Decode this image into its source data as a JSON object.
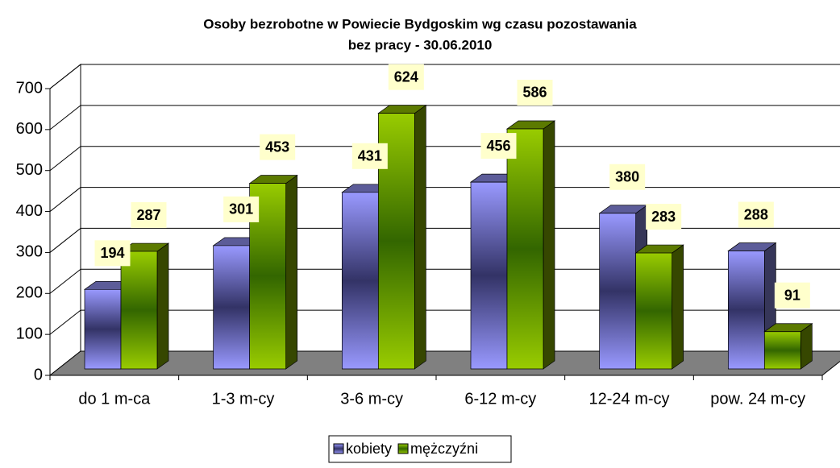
{
  "chart_data": {
    "type": "bar3d",
    "title": "Osoby bezrobotne w Powiecie Bydgoskim wg czasu pozostawania",
    "subtitle": "bez pracy - 30.06.2010",
    "categories": [
      "do 1 m-ca",
      "1-3 m-cy",
      "3-6 m-cy",
      "6-12 m-cy",
      "12-24 m-cy",
      "pow. 24 m-cy"
    ],
    "series": [
      {
        "name": "kobiety",
        "color": "#9999ff",
        "values": [
          194,
          301,
          431,
          456,
          380,
          288
        ]
      },
      {
        "name": "mężczyźni",
        "color": "#99cc00",
        "values": [
          287,
          453,
          624,
          586,
          283,
          91
        ]
      }
    ],
    "ylim": [
      0,
      700
    ],
    "yticks": [
      0,
      100,
      200,
      300,
      400,
      500,
      600,
      700
    ],
    "grid": true,
    "legend": "bottom"
  }
}
